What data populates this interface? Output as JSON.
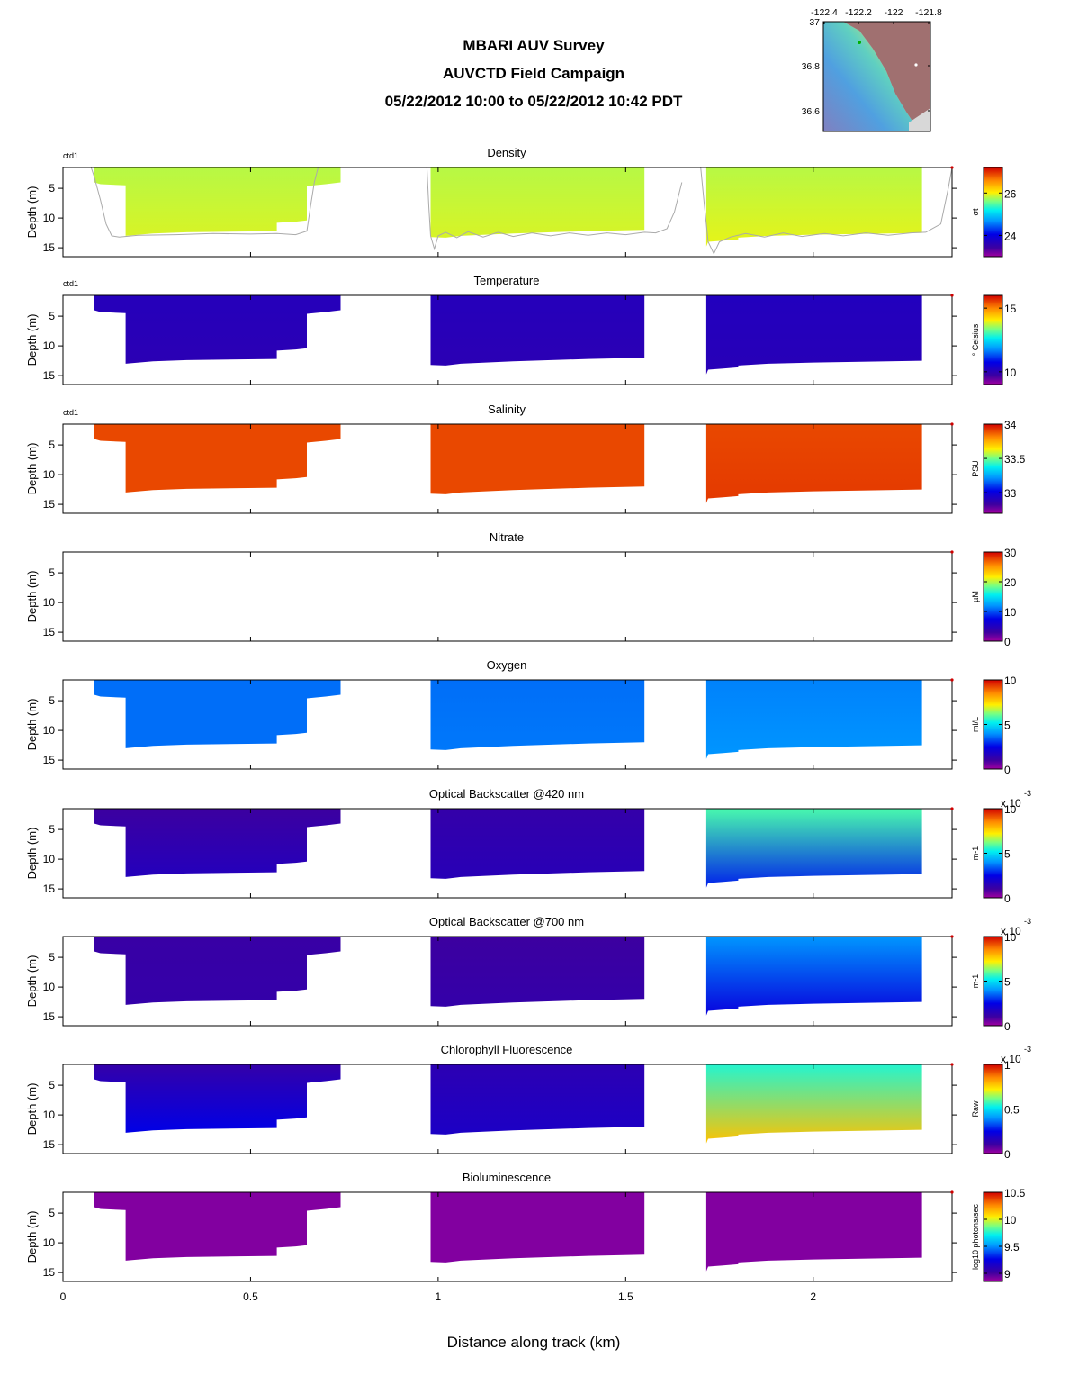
{
  "header": {
    "title_lines": [
      "MBARI AUV Survey",
      "AUVCTD Field Campaign",
      "05/22/2012 10:00  to 05/22/2012 10:42 PDT"
    ]
  },
  "inset_map": {
    "lon_ticks": [
      "-122.4",
      "-122.2",
      "-122",
      "-121.8"
    ],
    "lat_ticks": [
      "37",
      "36.8",
      "36.6"
    ],
    "colors": {
      "land": "#a07070",
      "gray": "#d8d8d8",
      "ocean_deep": "#60a0d0"
    }
  },
  "chart_data": {
    "type": "heatmap",
    "xlabel": "Distance along track (km)",
    "xlim": [
      0,
      2.37
    ],
    "x_ticks": [
      "0",
      "0.5",
      "1",
      "1.5",
      "2"
    ],
    "ylabel": "Depth (m)",
    "ylim": [
      1.5,
      16.5
    ],
    "y_ticks": [
      "5",
      "10",
      "15"
    ],
    "transects": [
      {
        "outline": [
          [
            0.083,
            1.5
          ],
          [
            0.083,
            4.0
          ],
          [
            0.1,
            4.3
          ],
          [
            0.167,
            4.5
          ],
          [
            0.167,
            13.0
          ],
          [
            0.24,
            12.6
          ],
          [
            0.33,
            12.4
          ],
          [
            0.57,
            12.2
          ],
          [
            0.57,
            10.8
          ],
          [
            0.62,
            10.6
          ],
          [
            0.65,
            10.4
          ],
          [
            0.65,
            4.6
          ],
          [
            0.7,
            4.3
          ],
          [
            0.74,
            4.0
          ],
          [
            0.74,
            1.5
          ]
        ]
      },
      {
        "outline": [
          [
            0.98,
            1.5
          ],
          [
            0.98,
            13.2
          ],
          [
            1.02,
            13.3
          ],
          [
            1.06,
            13.0
          ],
          [
            1.2,
            12.6
          ],
          [
            1.4,
            12.2
          ],
          [
            1.55,
            12.0
          ],
          [
            1.55,
            1.5
          ]
        ]
      },
      {
        "outline": [
          [
            1.715,
            1.5
          ],
          [
            1.715,
            14.8
          ],
          [
            1.72,
            14.0
          ],
          [
            1.76,
            13.8
          ],
          [
            1.8,
            13.6
          ],
          [
            1.8,
            13.3
          ],
          [
            1.88,
            13.0
          ],
          [
            2.0,
            12.8
          ],
          [
            2.2,
            12.6
          ],
          [
            2.29,
            12.5
          ],
          [
            2.29,
            1.5
          ]
        ]
      }
    ],
    "panels": [
      {
        "key": "density",
        "title": "Density",
        "tag": "ctd1",
        "unit": "σt",
        "cb_min": 23.0,
        "cb_max": 27.2,
        "cb_ticks": [
          "24",
          "26"
        ],
        "exp_label": "",
        "palette": "jet",
        "cb_tick_values": [
          24,
          26
        ],
        "segment_values": [
          {
            "top": 25.8,
            "bottom": 25.9
          },
          {
            "top": 25.8,
            "bottom": 25.9
          },
          {
            "top": 25.8,
            "bottom": 25.95
          }
        ],
        "overlay": "depth-trace"
      },
      {
        "key": "temperature",
        "title": "Temperature",
        "tag": "ctd1",
        "unit": "° Celsius",
        "cb_min": 9.0,
        "cb_max": 16.0,
        "cb_ticks": [
          "10",
          "15"
        ],
        "exp_label": "",
        "palette": "jet",
        "cb_tick_values": [
          10,
          15
        ],
        "segment_values": [
          {
            "top": 10.1,
            "bottom": 10.0
          },
          {
            "top": 10.1,
            "bottom": 10.0
          },
          {
            "top": 10.15,
            "bottom": 10.05
          }
        ]
      },
      {
        "key": "salinity",
        "title": "Salinity",
        "tag": "ctd1",
        "unit": "PSU",
        "cb_min": 32.7,
        "cb_max": 34.0,
        "cb_ticks": [
          "33",
          "33.5",
          "34"
        ],
        "exp_label": "",
        "palette": "jet",
        "cb_tick_values": [
          33,
          33.5,
          34
        ],
        "segment_values": [
          {
            "top": 33.9,
            "bottom": 33.9
          },
          {
            "top": 33.9,
            "bottom": 33.9
          },
          {
            "top": 33.9,
            "bottom": 33.92
          }
        ]
      },
      {
        "key": "nitrate",
        "title": "Nitrate",
        "tag": "",
        "unit": "µM",
        "cb_min": 0,
        "cb_max": 30,
        "cb_ticks": [
          "0",
          "10",
          "20",
          "30"
        ],
        "exp_label": "",
        "palette": "jet",
        "cb_tick_values": [
          0,
          10,
          20,
          30
        ],
        "segment_values": []
      },
      {
        "key": "oxygen",
        "title": "Oxygen",
        "tag": "",
        "unit": "ml/L",
        "cb_min": 0,
        "cb_max": 10,
        "cb_ticks": [
          "0",
          "5",
          "10"
        ],
        "exp_label": "",
        "palette": "jet",
        "cb_tick_values": [
          0,
          5,
          10
        ],
        "segment_values": [
          {
            "top": 3.6,
            "bottom": 3.6
          },
          {
            "top": 3.6,
            "bottom": 3.7
          },
          {
            "top": 3.8,
            "bottom": 4.0
          }
        ]
      },
      {
        "key": "bb420",
        "title": "Optical Backscatter @420 nm",
        "tag": "",
        "unit": "m-1",
        "cb_min": 0,
        "cb_max": 10,
        "cb_ticks": [
          "0",
          "5",
          "10"
        ],
        "exp_label": "x 10-3",
        "palette": "jet",
        "cb_tick_values": [
          0,
          5,
          10
        ],
        "segment_values": [
          {
            "top": 1.0,
            "bottom": 1.6
          },
          {
            "top": 1.2,
            "bottom": 1.5
          },
          {
            "top": 5.8,
            "bottom": 2.8
          }
        ]
      },
      {
        "key": "bb700",
        "title": "Optical Backscatter @700 nm",
        "tag": "",
        "unit": "m-1",
        "cb_min": 0,
        "cb_max": 10,
        "cb_ticks": [
          "0",
          "5",
          "10"
        ],
        "exp_label": "x 10-3",
        "palette": "jet",
        "cb_tick_values": [
          0,
          5,
          10
        ],
        "segment_values": [
          {
            "top": 1.1,
            "bottom": 1.2
          },
          {
            "top": 1.0,
            "bottom": 1.2
          },
          {
            "top": 4.0,
            "bottom": 2.3
          }
        ]
      },
      {
        "key": "chl",
        "title": "Chlorophyll Fluorescence",
        "tag": "",
        "unit": "Raw",
        "cb_min": 0,
        "cb_max": 1.0,
        "cb_ticks": [
          "0",
          "0.5",
          "1"
        ],
        "exp_label": "x 10-3",
        "palette": "jet",
        "cb_tick_values": [
          0,
          0.5,
          1
        ],
        "segment_values": [
          {
            "top": 0.12,
            "bottom": 0.25
          },
          {
            "top": 0.14,
            "bottom": 0.18
          },
          {
            "top": 0.55,
            "bottom": 0.78
          }
        ]
      },
      {
        "key": "biolum",
        "title": "Bioluminescence",
        "tag": "",
        "unit": "log10 photons/sec",
        "cb_min": 8.85,
        "cb_max": 10.5,
        "cb_ticks": [
          "9",
          "9.5",
          "10",
          "10.5"
        ],
        "exp_label": "",
        "palette": "jet",
        "cb_tick_values": [
          9,
          9.5,
          10,
          10.5
        ],
        "segment_values": [
          {
            "top": 8.9,
            "bottom": 8.9
          },
          {
            "top": 8.9,
            "bottom": 8.9
          },
          {
            "top": 8.9,
            "bottom": 8.9
          }
        ]
      }
    ]
  }
}
